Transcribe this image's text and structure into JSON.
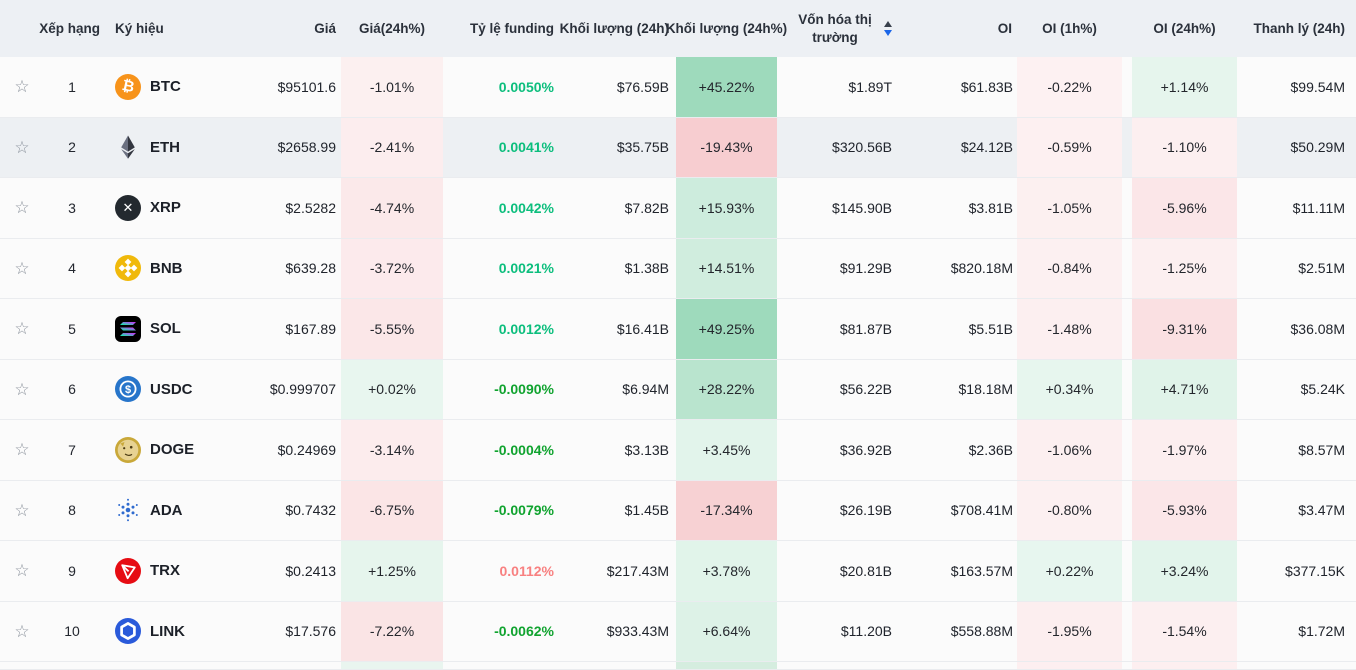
{
  "table": {
    "columns": {
      "rank": "Xếp hạng",
      "symbol": "Ký hiệu",
      "price": "Giá",
      "change_24h": "Giá(24h%)",
      "funding": "Tỷ lệ funding",
      "volume_24h": "Khối lượng (24h)",
      "volume_24h_pct": "Khối lượng (24h%)",
      "market_cap": "Vốn hóa thị trường",
      "oi": "OI",
      "oi_1h": "OI (1h%)",
      "oi_24h": "OI (24h%)",
      "liquidation_24h": "Thanh lý (24h)"
    },
    "sort": {
      "column": "market_cap",
      "direction": "desc"
    }
  },
  "colors": {
    "header_bg": "#edf0f4",
    "row_bg": "#fbfbfb",
    "row_highlight_bg": "#edf0f3",
    "gain_base": "#3cb478",
    "loss_base": "#e14b55",
    "funding_pos": "#0cbe7d",
    "funding_neg": "#10a32f",
    "funding_hot": "#f88080",
    "sort_active_blue": "#1b66e8",
    "sort_inactive": "#39404c",
    "star": "#8b929c"
  },
  "rows": [
    {
      "rank": "1",
      "symbol": "BTC",
      "icon": "btc",
      "price": "$95101.6",
      "change_24h": "-1.01%",
      "funding": "0.0050%",
      "funding_tone": "pos",
      "volume_24h": "$76.59B",
      "volume_24h_pct": "+45.22%",
      "market_cap": "$1.89T",
      "oi": "$61.83B",
      "oi_1h": "-0.22%",
      "oi_24h": "+1.14%",
      "liquidation_24h": "$99.54M",
      "highlighted": false
    },
    {
      "rank": "2",
      "symbol": "ETH",
      "icon": "eth",
      "price": "$2658.99",
      "change_24h": "-2.41%",
      "funding": "0.0041%",
      "funding_tone": "pos",
      "volume_24h": "$35.75B",
      "volume_24h_pct": "-19.43%",
      "market_cap": "$320.56B",
      "oi": "$24.12B",
      "oi_1h": "-0.59%",
      "oi_24h": "-1.10%",
      "liquidation_24h": "$50.29M",
      "highlighted": true
    },
    {
      "rank": "3",
      "symbol": "XRP",
      "icon": "xrp",
      "price": "$2.5282",
      "change_24h": "-4.74%",
      "funding": "0.0042%",
      "funding_tone": "pos",
      "volume_24h": "$7.82B",
      "volume_24h_pct": "+15.93%",
      "market_cap": "$145.90B",
      "oi": "$3.81B",
      "oi_1h": "-1.05%",
      "oi_24h": "-5.96%",
      "liquidation_24h": "$11.11M",
      "highlighted": false
    },
    {
      "rank": "4",
      "symbol": "BNB",
      "icon": "bnb",
      "price": "$639.28",
      "change_24h": "-3.72%",
      "funding": "0.0021%",
      "funding_tone": "pos",
      "volume_24h": "$1.38B",
      "volume_24h_pct": "+14.51%",
      "market_cap": "$91.29B",
      "oi": "$820.18M",
      "oi_1h": "-0.84%",
      "oi_24h": "-1.25%",
      "liquidation_24h": "$2.51M",
      "highlighted": false
    },
    {
      "rank": "5",
      "symbol": "SOL",
      "icon": "sol",
      "price": "$167.89",
      "change_24h": "-5.55%",
      "funding": "0.0012%",
      "funding_tone": "pos",
      "volume_24h": "$16.41B",
      "volume_24h_pct": "+49.25%",
      "market_cap": "$81.87B",
      "oi": "$5.51B",
      "oi_1h": "-1.48%",
      "oi_24h": "-9.31%",
      "liquidation_24h": "$36.08M",
      "highlighted": false
    },
    {
      "rank": "6",
      "symbol": "USDC",
      "icon": "usdc",
      "price": "$0.999707",
      "change_24h": "+0.02%",
      "funding": "-0.0090%",
      "funding_tone": "neg",
      "volume_24h": "$6.94M",
      "volume_24h_pct": "+28.22%",
      "market_cap": "$56.22B",
      "oi": "$18.18M",
      "oi_1h": "+0.34%",
      "oi_24h": "+4.71%",
      "liquidation_24h": "$5.24K",
      "highlighted": false
    },
    {
      "rank": "7",
      "symbol": "DOGE",
      "icon": "doge",
      "price": "$0.24969",
      "change_24h": "-3.14%",
      "funding": "-0.0004%",
      "funding_tone": "neg",
      "volume_24h": "$3.13B",
      "volume_24h_pct": "+3.45%",
      "market_cap": "$36.92B",
      "oi": "$2.36B",
      "oi_1h": "-1.06%",
      "oi_24h": "-1.97%",
      "liquidation_24h": "$8.57M",
      "highlighted": false
    },
    {
      "rank": "8",
      "symbol": "ADA",
      "icon": "ada",
      "price": "$0.7432",
      "change_24h": "-6.75%",
      "funding": "-0.0079%",
      "funding_tone": "neg",
      "volume_24h": "$1.45B",
      "volume_24h_pct": "-17.34%",
      "market_cap": "$26.19B",
      "oi": "$708.41M",
      "oi_1h": "-0.80%",
      "oi_24h": "-5.93%",
      "liquidation_24h": "$3.47M",
      "highlighted": false
    },
    {
      "rank": "9",
      "symbol": "TRX",
      "icon": "trx",
      "price": "$0.2413",
      "change_24h": "+1.25%",
      "funding": "0.0112%",
      "funding_tone": "hot",
      "volume_24h": "$217.43M",
      "volume_24h_pct": "+3.78%",
      "market_cap": "$20.81B",
      "oi": "$163.57M",
      "oi_1h": "+0.22%",
      "oi_24h": "+3.24%",
      "liquidation_24h": "$377.15K",
      "highlighted": false
    },
    {
      "rank": "10",
      "symbol": "LINK",
      "icon": "link",
      "price": "$17.576",
      "change_24h": "-7.22%",
      "funding": "-0.0062%",
      "funding_tone": "neg",
      "volume_24h": "$933.43M",
      "volume_24h_pct": "+6.64%",
      "market_cap": "$11.20B",
      "oi": "$558.88M",
      "oi_1h": "-1.95%",
      "oi_24h": "-1.54%",
      "liquidation_24h": "$1.72M",
      "highlighted": false
    }
  ],
  "partial_row": {
    "change_bg": "#e9f5ef",
    "volume_pct_bg": "#d5eddf",
    "oi_1h_bg": "#fdeff0",
    "oi_24h_bg": "#fdeff0"
  }
}
